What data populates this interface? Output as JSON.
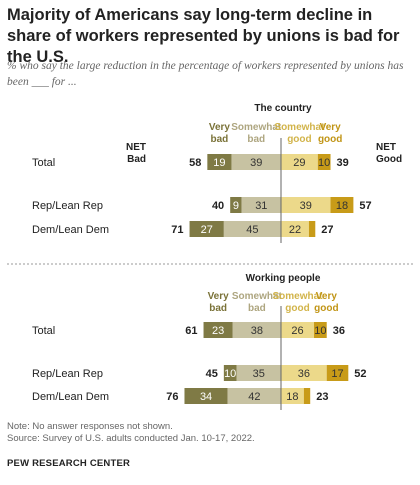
{
  "title": "Majority of Americans say long-term decline in share of workers represented by unions is bad for the U.S.",
  "subtitle": "% who say the large reduction in the percentage of workers represented by unions has been ___ for ...",
  "colors": {
    "very_bad": "#7f7a45",
    "somewhat_bad": "#c7c2a2",
    "somewhat_good": "#ecd98a",
    "very_good": "#c89b18",
    "very_bad_label": "#7a7238",
    "somewhat_bad_label": "#aea680",
    "somewhat_good_label": "#d2b44a",
    "very_good_label": "#c19516"
  },
  "chart_data": [
    {
      "type": "bar",
      "stacked": "diverging",
      "title": "The country",
      "legend": [
        "Very bad",
        "Somewhat bad",
        "Somewhat good",
        "Very good"
      ],
      "net_labels": {
        "bad": "NET Bad",
        "good": "NET Good"
      },
      "categories": [
        "Total",
        "Rep/Lean Rep",
        "Dem/Lean Dem"
      ],
      "series": [
        {
          "name": "Very bad",
          "values": [
            19,
            9,
            27
          ]
        },
        {
          "name": "Somewhat bad",
          "values": [
            39,
            31,
            45
          ]
        },
        {
          "name": "Somewhat good",
          "values": [
            29,
            39,
            22
          ]
        },
        {
          "name": "Very good",
          "values": [
            10,
            18,
            5
          ]
        }
      ],
      "labels": {
        "very_bad": [
          "19",
          "9",
          "27"
        ],
        "somewhat_bad": [
          "39",
          "31",
          "45"
        ],
        "somewhat_good": [
          "29",
          "39",
          "22"
        ],
        "very_good": [
          "10",
          "18",
          ""
        ]
      },
      "net_bad": [
        58,
        40,
        71
      ],
      "net_good": [
        39,
        57,
        27
      ]
    },
    {
      "type": "bar",
      "stacked": "diverging",
      "title": "Working people",
      "legend": [
        "Very bad",
        "Somewhat bad",
        "Somewhat good",
        "Very good"
      ],
      "categories": [
        "Total",
        "Rep/Lean Rep",
        "Dem/Lean Dem"
      ],
      "series": [
        {
          "name": "Very bad",
          "values": [
            23,
            10,
            34
          ]
        },
        {
          "name": "Somewhat bad",
          "values": [
            38,
            35,
            42
          ]
        },
        {
          "name": "Somewhat good",
          "values": [
            26,
            36,
            18
          ]
        },
        {
          "name": "Very good",
          "values": [
            10,
            17,
            5
          ]
        }
      ],
      "labels": {
        "very_bad": [
          "23",
          "10",
          "34"
        ],
        "somewhat_bad": [
          "38",
          "35",
          "42"
        ],
        "somewhat_good": [
          "26",
          "36",
          "18"
        ],
        "very_good": [
          "10",
          "17",
          ""
        ]
      },
      "net_bad": [
        61,
        45,
        76
      ],
      "net_good": [
        36,
        52,
        23
      ]
    }
  ],
  "notes": {
    "note": "Note: No answer responses not shown.",
    "source": "Source: Survey of U.S. adults conducted Jan. 10-17, 2022."
  },
  "brand": "PEW RESEARCH CENTER"
}
